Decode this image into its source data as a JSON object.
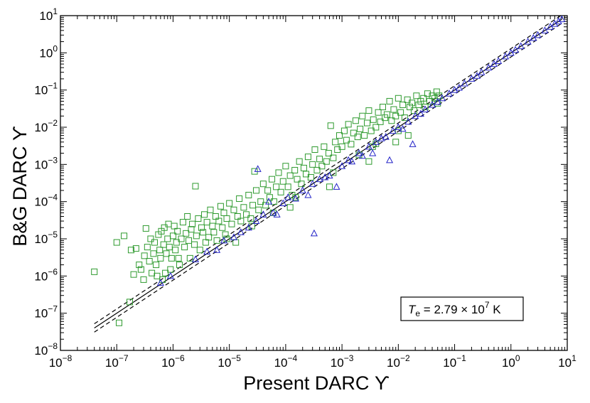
{
  "chart_data": {
    "type": "scatter",
    "xlabel": "Present DARC ϒ",
    "ylabel": "B&G DARC ϒ",
    "xscale": "log",
    "yscale": "log",
    "xlim": [
      1e-08,
      10
    ],
    "ylim": [
      1e-08,
      10
    ],
    "x_ticks": [
      {
        "base": "10",
        "exp": "−8"
      },
      {
        "base": "10",
        "exp": "−7"
      },
      {
        "base": "10",
        "exp": "−6"
      },
      {
        "base": "10",
        "exp": "−5"
      },
      {
        "base": "10",
        "exp": "−4"
      },
      {
        "base": "10",
        "exp": "−3"
      },
      {
        "base": "10",
        "exp": "−2"
      },
      {
        "base": "10",
        "exp": "−1"
      },
      {
        "base": "10",
        "exp": "0"
      },
      {
        "base": "10",
        "exp": "1"
      }
    ],
    "y_ticks": [
      {
        "base": "10",
        "exp": "−8"
      },
      {
        "base": "10",
        "exp": "−7"
      },
      {
        "base": "10",
        "exp": "−6"
      },
      {
        "base": "10",
        "exp": "−5"
      },
      {
        "base": "10",
        "exp": "−4"
      },
      {
        "base": "10",
        "exp": "−3"
      },
      {
        "base": "10",
        "exp": "−2"
      },
      {
        "base": "10",
        "exp": "−1"
      },
      {
        "base": "10",
        "exp": "0"
      },
      {
        "base": "10",
        "exp": "1"
      }
    ],
    "annotation": {
      "T": "T",
      "sub": "e",
      "eq": " = 2.79 × 10",
      "exp": "7",
      "unit": " K"
    },
    "lines": [
      {
        "style": "solid",
        "x": [
          4e-08,
          8
        ],
        "y": [
          4e-08,
          8
        ]
      },
      {
        "style": "dashed",
        "x": [
          4e-08,
          8
        ],
        "y": [
          5.2e-08,
          10.4
        ]
      },
      {
        "style": "dashed",
        "x": [
          4e-08,
          8
        ],
        "y": [
          3.1e-08,
          6.2
        ]
      }
    ],
    "series": [
      {
        "marker": "square",
        "color": "#2e9a2e",
        "points": [
          [
            4e-08,
            1.3e-06
          ],
          [
            1.1e-07,
            5.5e-08
          ],
          [
            1e-07,
            8e-06
          ],
          [
            1.35e-07,
            1.2e-05
          ],
          [
            1.7e-07,
            2e-07
          ],
          [
            2e-07,
            1.1e-06
          ],
          [
            1.8e-07,
            5e-06
          ],
          [
            2.2e-07,
            5.5e-06
          ],
          [
            2.5e-07,
            2e-06
          ],
          [
            2.7e-07,
            1.5e-06
          ],
          [
            3e-07,
            8e-07
          ],
          [
            3.3e-07,
            1.9e-05
          ],
          [
            3.1e-07,
            3.5e-06
          ],
          [
            3.5e-07,
            6e-06
          ],
          [
            3.8e-07,
            2.5e-06
          ],
          [
            4e-07,
            1e-05
          ],
          [
            4.2e-07,
            1.2e-06
          ],
          [
            4.5e-07,
            4e-06
          ],
          [
            4.7e-07,
            8e-06
          ],
          [
            5e-07,
            2e-06
          ],
          [
            5.2e-07,
            1e-06
          ],
          [
            5.5e-07,
            1.3e-05
          ],
          [
            5.8e-07,
            5e-06
          ],
          [
            6e-07,
            3e-06
          ],
          [
            6.2e-07,
            1.6e-05
          ],
          [
            6.5e-07,
            8e-07
          ],
          [
            6.8e-07,
            7e-06
          ],
          [
            7e-07,
            2e-05
          ],
          [
            7.3e-07,
            1.2e-06
          ],
          [
            7.6e-07,
            4e-06
          ],
          [
            8e-07,
            1e-05
          ],
          [
            8.3e-07,
            2.5e-05
          ],
          [
            8.6e-07,
            6e-06
          ],
          [
            9e-07,
            1.5e-06
          ],
          [
            9.4e-07,
            3e-06
          ],
          [
            1e-06,
            1.2e-05
          ],
          [
            1.05e-06,
            2.2e-05
          ],
          [
            1.1e-06,
            5e-06
          ],
          [
            1.15e-06,
            8e-06
          ],
          [
            1.2e-06,
            1.6e-05
          ],
          [
            1.25e-06,
            3e-06
          ],
          [
            1.3e-06,
            2e-06
          ],
          [
            1.4e-06,
            1e-05
          ],
          [
            1.5e-06,
            2.8e-05
          ],
          [
            1.6e-06,
            6e-06
          ],
          [
            1.7e-06,
            1.4e-05
          ],
          [
            1.8e-06,
            4e-05
          ],
          [
            1.9e-06,
            9e-06
          ],
          [
            2e-06,
            3e-06
          ],
          [
            2.1e-06,
            1.8e-05
          ],
          [
            2.2e-06,
            2.5e-05
          ],
          [
            2.4e-06,
            7e-06
          ],
          [
            2.5e-06,
            0.00026
          ],
          [
            2.6e-06,
            1.2e-05
          ],
          [
            2.8e-06,
            3.5e-05
          ],
          [
            3e-06,
            5e-06
          ],
          [
            3.2e-06,
            2e-05
          ],
          [
            3.4e-06,
            1.5e-05
          ],
          [
            3.6e-06,
            4.5e-05
          ],
          [
            3.8e-06,
            8e-06
          ],
          [
            4e-06,
            2.8e-05
          ],
          [
            4.3e-06,
            1.1e-05
          ],
          [
            4.6e-06,
            6e-05
          ],
          [
            5e-06,
            2.2e-05
          ],
          [
            5.3e-06,
            1.5e-05
          ],
          [
            5.7e-06,
            4e-05
          ],
          [
            6e-06,
            9e-06
          ],
          [
            6.5e-06,
            3e-05
          ],
          [
            7e-06,
            7.5e-05
          ],
          [
            7.5e-06,
            2e-05
          ],
          [
            8e-06,
            5e-05
          ],
          [
            8.5e-06,
            1.3e-05
          ],
          [
            9e-06,
            3.5e-05
          ],
          [
            1e-05,
            9e-05
          ],
          [
            1.1e-05,
            2.5e-05
          ],
          [
            1.2e-05,
            6e-05
          ],
          [
            1.3e-05,
            8e-06
          ],
          [
            1.4e-05,
            4e-05
          ],
          [
            1.5e-05,
            0.00012
          ],
          [
            1.6e-05,
            3e-05
          ],
          [
            1.8e-05,
            7e-05
          ],
          [
            2e-05,
            4.5e-05
          ],
          [
            2.2e-05,
            0.00015
          ],
          [
            2.4e-05,
            3.5e-05
          ],
          [
            2.6e-05,
            8e-05
          ],
          [
            2.8e-05,
            0.00065
          ],
          [
            3e-05,
            0.0002
          ],
          [
            3.3e-05,
            6e-05
          ],
          [
            3.6e-05,
            0.0001
          ],
          [
            4e-05,
            0.0003
          ],
          [
            4.4e-05,
            8e-05
          ],
          [
            4.8e-05,
            0.0002
          ],
          [
            5.2e-05,
            0.00013
          ],
          [
            5.7e-05,
            0.0004
          ],
          [
            6.2e-05,
            0.0001
          ],
          [
            6.8e-05,
            0.00025
          ],
          [
            7.5e-05,
            0.0006
          ],
          [
            8.2e-05,
            0.00018
          ],
          [
            9e-05,
            0.00035
          ],
          [
            0.0001,
            0.0009
          ],
          [
            0.00011,
            0.00025
          ],
          [
            0.00012,
            0.0005
          ],
          [
            0.00013,
            0.00015
          ],
          [
            0.000145,
            0.0007
          ],
          [
            0.00016,
            0.0004
          ],
          [
            0.000175,
            0.0012
          ],
          [
            0.00019,
            0.0003
          ],
          [
            0.00021,
            0.0008
          ],
          [
            0.00023,
            0.00055
          ],
          [
            0.00025,
            0.0016
          ],
          [
            0.00028,
            0.00045
          ],
          [
            0.0003,
            0.001
          ],
          [
            0.00033,
            0.0025
          ],
          [
            0.00036,
            0.0007
          ],
          [
            0.0004,
            0.0014
          ],
          [
            0.00044,
            0.0009
          ],
          [
            0.00048,
            0.003
          ],
          [
            0.00053,
            0.0012
          ],
          [
            0.00058,
            0.002
          ],
          [
            0.00063,
            0.011
          ],
          [
            0.0007,
            0.0015
          ],
          [
            0.00076,
            0.004
          ],
          [
            0.00083,
            0.0025
          ],
          [
            0.0009,
            0.006
          ],
          [
            0.001,
            0.003
          ],
          [
            0.0011,
            0.008
          ],
          [
            0.0012,
            0.0045
          ],
          [
            0.0013,
            0.012
          ],
          [
            0.00145,
            0.0035
          ],
          [
            0.0016,
            0.007
          ],
          [
            0.00175,
            0.015
          ],
          [
            0.0019,
            0.0055
          ],
          [
            0.0021,
            0.009
          ],
          [
            0.0023,
            0.02
          ],
          [
            0.0025,
            0.006
          ],
          [
            0.0028,
            0.013
          ],
          [
            0.003,
            0.028
          ],
          [
            0.0033,
            0.008
          ],
          [
            0.0036,
            0.016
          ],
          [
            0.004,
            0.01
          ],
          [
            0.0044,
            0.025
          ],
          [
            0.0048,
            0.014
          ],
          [
            0.0053,
            0.035
          ],
          [
            0.0058,
            0.018
          ],
          [
            0.0063,
            0.022
          ],
          [
            0.007,
            0.05
          ],
          [
            0.0076,
            0.015
          ],
          [
            0.0083,
            0.03
          ],
          [
            0.009,
            0.02
          ],
          [
            0.01,
            0.06
          ],
          [
            0.011,
            0.025
          ],
          [
            0.012,
            0.04
          ],
          [
            0.013,
            0.018
          ],
          [
            0.0145,
            0.055
          ],
          [
            0.016,
            0.035
          ],
          [
            0.0175,
            0.045
          ],
          [
            0.019,
            0.028
          ],
          [
            0.021,
            0.07
          ],
          [
            0.023,
            0.04
          ],
          [
            0.025,
            0.05
          ],
          [
            0.028,
            0.06
          ],
          [
            0.03,
            0.035
          ],
          [
            0.033,
            0.08
          ],
          [
            0.036,
            0.05
          ],
          [
            0.04,
            0.07
          ],
          [
            0.044,
            0.06
          ],
          [
            0.048,
            0.09
          ],
          [
            0.053,
            0.07
          ],
          [
            0.002,
            0.0018
          ],
          [
            0.0035,
            0.003
          ],
          [
            0.0007,
            0.0006
          ],
          [
            0.00015,
            0.00013
          ],
          [
            0.01,
            0.008
          ],
          [
            0.004,
            0.0036
          ],
          [
            6e-05,
            5e-05
          ],
          [
            2.5e-05,
            2.2e-05
          ],
          [
            9e-06,
            1e-05
          ],
          [
            0.05,
            0.044
          ],
          [
            0.015,
            0.006
          ],
          [
            0.009,
            0.004
          ],
          [
            0.003,
            0.0012
          ],
          [
            0.0006,
            0.00025
          ],
          [
            0.00012,
            7e-05
          ]
        ]
      },
      {
        "marker": "triangle",
        "color": "#2323c8",
        "points": [
          [
            6e-07,
            6.5e-07
          ],
          [
            9e-07,
            1e-06
          ],
          [
            2.5e-06,
            2.8e-06
          ],
          [
            4e-06,
            4.5e-06
          ],
          [
            6e-06,
            5e-06
          ],
          [
            8e-06,
            9e-06
          ],
          [
            1.2e-05,
            1.1e-05
          ],
          [
            1.6e-05,
            1.5e-05
          ],
          [
            2.2e-05,
            2e-05
          ],
          [
            3e-05,
            3e-05
          ],
          [
            3.2e-05,
            0.00075
          ],
          [
            4e-05,
            4.5e-05
          ],
          [
            5e-05,
            0.0001
          ],
          [
            6e-05,
            5e-05
          ],
          [
            7e-05,
            4.5e-05
          ],
          [
            9e-05,
            9e-05
          ],
          [
            0.00011,
            0.00013
          ],
          [
            0.00015,
            0.00012
          ],
          [
            0.0002,
            0.0002
          ],
          [
            0.00025,
            0.00015
          ],
          [
            0.0003,
            0.0003
          ],
          [
            0.00032,
            1.4e-05
          ],
          [
            0.0004,
            0.0004
          ],
          [
            0.0005,
            0.00045
          ],
          [
            0.0006,
            0.0005
          ],
          [
            0.0008,
            0.00025
          ],
          [
            0.001,
            0.0009
          ],
          [
            0.0013,
            0.0013
          ],
          [
            0.0015,
            0.0012
          ],
          [
            0.002,
            0.002
          ],
          [
            0.0023,
            0.0017
          ],
          [
            0.003,
            0.003
          ],
          [
            0.0035,
            0.002
          ],
          [
            0.004,
            0.004
          ],
          [
            0.005,
            0.005
          ],
          [
            0.006,
            0.0055
          ],
          [
            0.007,
            0.0013
          ],
          [
            0.008,
            0.008
          ],
          [
            0.01,
            0.01
          ],
          [
            0.012,
            0.009
          ],
          [
            0.015,
            0.014
          ],
          [
            0.018,
            0.0035
          ],
          [
            0.02,
            0.02
          ],
          [
            0.025,
            0.023
          ],
          [
            0.03,
            0.03
          ],
          [
            0.04,
            0.04
          ],
          [
            0.05,
            0.048
          ],
          [
            0.06,
            0.06
          ],
          [
            0.08,
            0.08
          ],
          [
            0.1,
            0.1
          ],
          [
            0.12,
            0.115
          ],
          [
            0.15,
            0.15
          ],
          [
            0.2,
            0.2
          ],
          [
            0.25,
            0.24
          ],
          [
            0.3,
            0.3
          ],
          [
            0.4,
            0.4
          ],
          [
            0.5,
            0.5
          ],
          [
            0.6,
            0.6
          ],
          [
            0.8,
            0.8
          ],
          [
            1,
            1
          ],
          [
            1.2,
            1.2
          ],
          [
            1.5,
            1.5
          ],
          [
            2,
            2
          ],
          [
            2.5,
            2.5
          ],
          [
            3,
            3
          ],
          [
            4,
            4
          ],
          [
            5,
            5
          ],
          [
            6,
            6
          ],
          [
            7,
            7
          ],
          [
            8,
            8
          ]
        ]
      }
    ]
  }
}
